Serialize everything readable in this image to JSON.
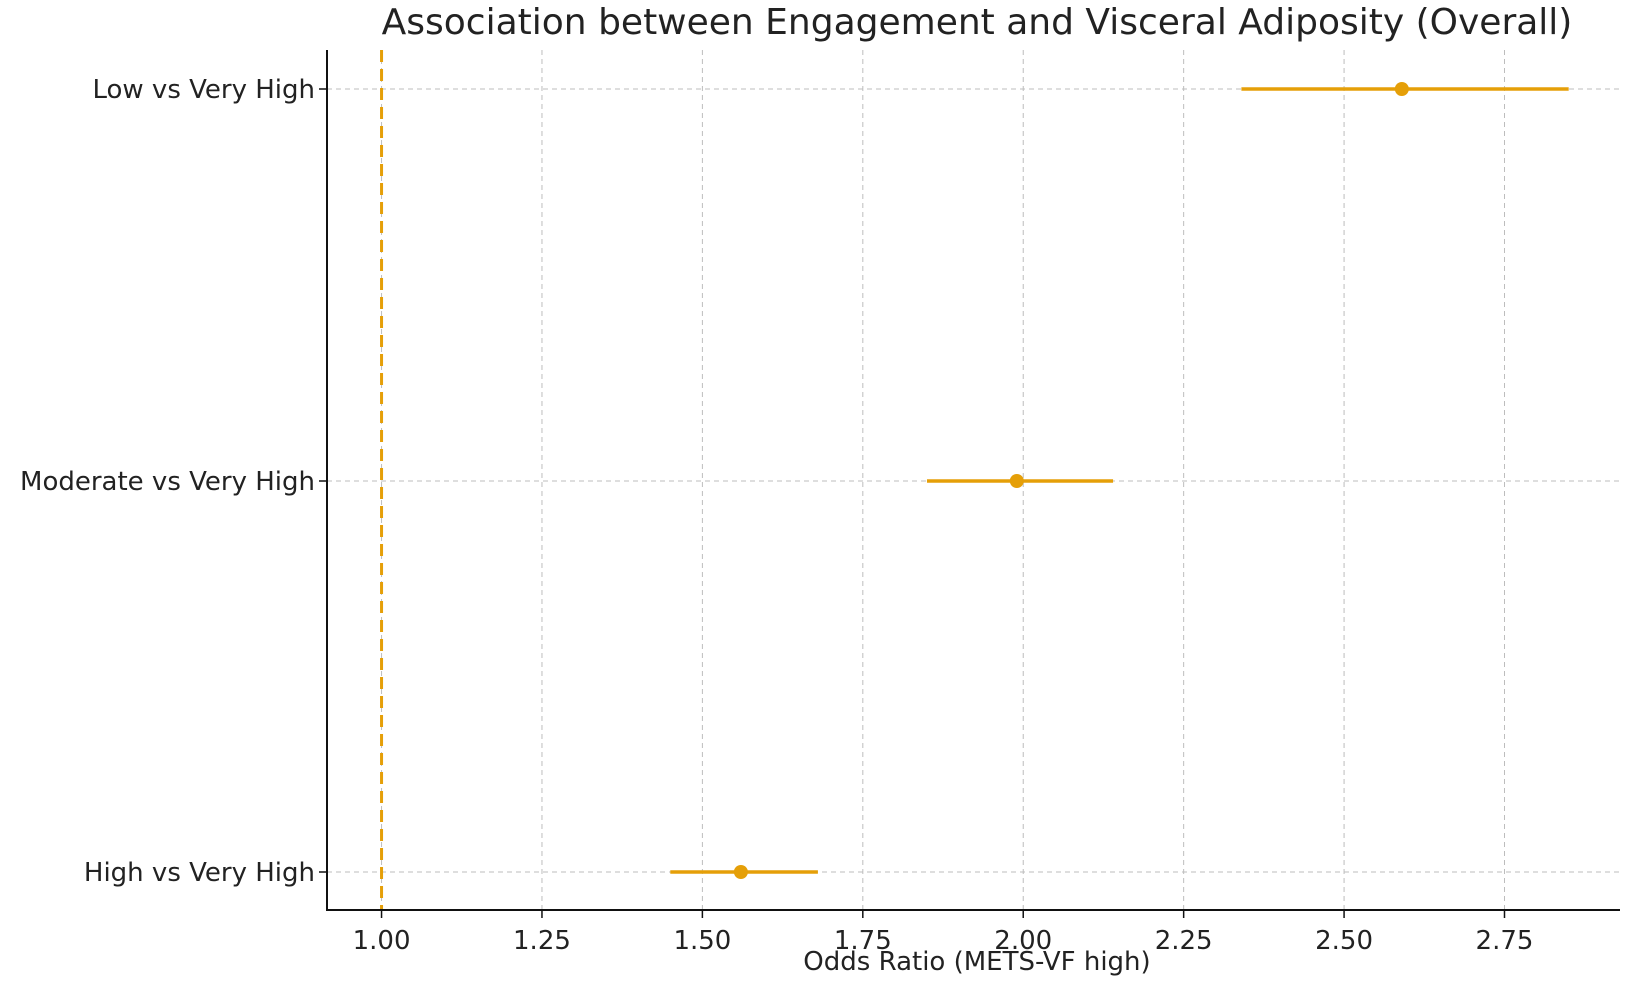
{
  "chart_data": {
    "type": "forest",
    "title": "Association between Engagement and Visceral Adiposity (Overall)",
    "xlabel": "Odds Ratio (METS-VF high)",
    "ylabel": "",
    "xlim": [
      0.915,
      2.93
    ],
    "xticks": [
      1.0,
      1.25,
      1.5,
      1.75,
      2.0,
      2.25,
      2.5,
      2.75
    ],
    "xtick_labels": [
      "1.00",
      "1.25",
      "1.50",
      "1.75",
      "2.00",
      "2.25",
      "2.50",
      "2.75"
    ],
    "reference_value": 1.0,
    "grid": true,
    "color": "#e59f08",
    "rows": [
      {
        "label": "Low vs Very High",
        "or": 2.59,
        "lower": 2.34,
        "upper": 2.85
      },
      {
        "label": "Moderate vs Very High",
        "or": 1.99,
        "lower": 1.85,
        "upper": 2.14
      },
      {
        "label": "High vs Very High",
        "or": 1.56,
        "lower": 1.45,
        "upper": 1.68
      }
    ]
  }
}
